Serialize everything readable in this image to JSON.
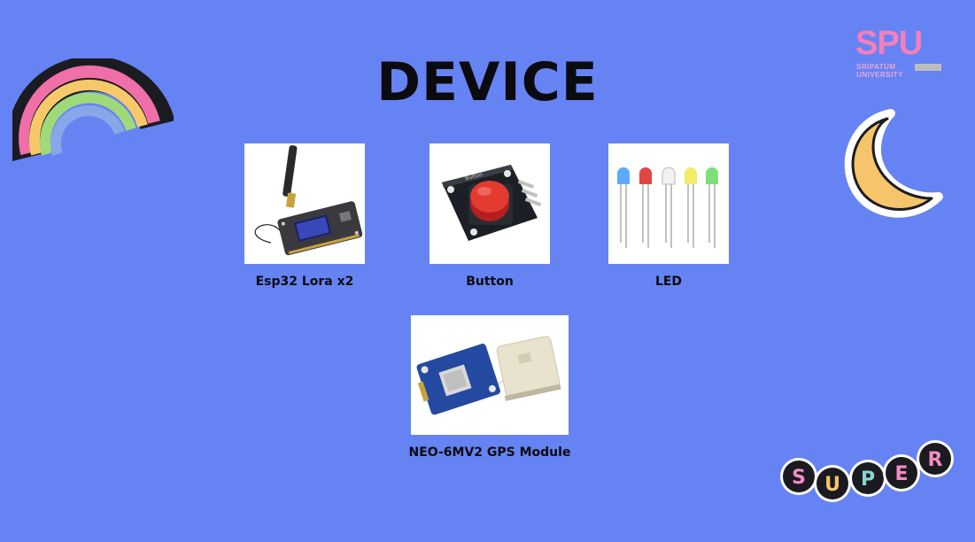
{
  "title": "DEVICE",
  "logo": {
    "text": "SPU",
    "line1": "SRIPATUM",
    "line2": "UNIVERSITY"
  },
  "devices": [
    {
      "label": "Esp32 Lora x2"
    },
    {
      "label": "Button",
      "board_text": "Button"
    },
    {
      "label": "LED"
    },
    {
      "label": "NEO-6MV2 GPS Module"
    }
  ],
  "sticker": {
    "letters": [
      "S",
      "U",
      "P",
      "E",
      "R"
    ]
  },
  "colors": {
    "background": "#6683f3",
    "title": "#0b0b0f",
    "logo_pink": "#f37fbd",
    "rainbow": [
      "#f06fa8",
      "#f6c86a",
      "#9ed97a",
      "#87a7e8"
    ],
    "moon": "#f6c46a"
  },
  "icons": [
    "rainbow-icon",
    "moon-icon",
    "super-sticker-icon"
  ]
}
